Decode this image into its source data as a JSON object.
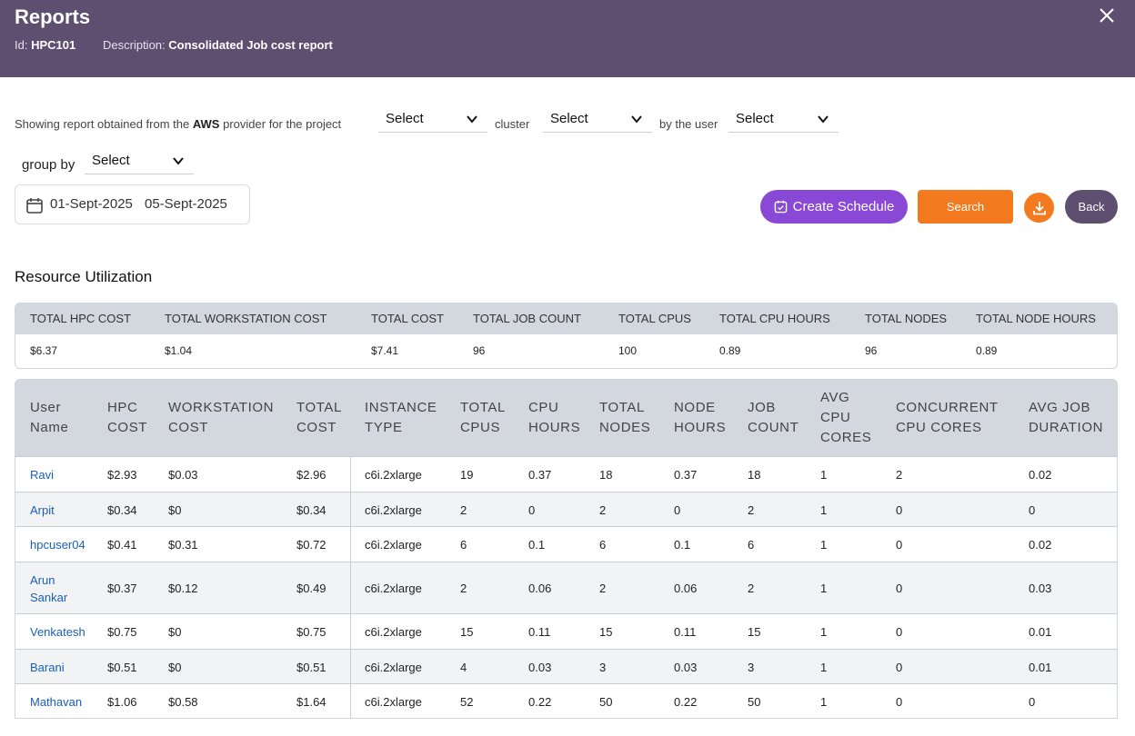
{
  "header": {
    "title": "Reports",
    "id_label": "Id:",
    "id_value": "HPC101",
    "desc_label": "Description:",
    "desc_value": "Consolidated Job cost report"
  },
  "filters": {
    "intro_prefix": "Showing report obtained from the",
    "provider": "AWS",
    "intro_suffix": "provider for the project",
    "project_select": "Select",
    "cluster_label": "cluster",
    "cluster_select": "Select",
    "user_label": "by the user",
    "user_select": "Select",
    "groupby_label": "group by",
    "groupby_select": "Select",
    "date_start": "01-Sept-2025",
    "date_end": "05-Sept-2025"
  },
  "actions": {
    "schedule_label": "Create Schedule",
    "search_label": "Search",
    "back_label": "Back"
  },
  "section_title": "Resource Utilization",
  "summary": {
    "headers": [
      "TOTAL HPC COST",
      "TOTAL WORKSTATION COST",
      "TOTAL COST",
      "TOTAL JOB COUNT",
      "TOTAL CPUS",
      "TOTAL CPU HOURS",
      "TOTAL NODES",
      "TOTAL NODE HOURS"
    ],
    "values": [
      "$6.37",
      "$1.04",
      "$7.41",
      "96",
      "100",
      "0.89",
      "96",
      "0.89"
    ]
  },
  "table": {
    "headers": [
      [
        "User",
        "Name"
      ],
      [
        "HPC",
        "COST"
      ],
      [
        "WORKSTATION",
        "COST"
      ],
      [
        "TOTAL",
        "COST"
      ],
      [
        "INSTANCE",
        "TYPE"
      ],
      [
        "TOTAL",
        "CPUS"
      ],
      [
        "CPU",
        "HOURS"
      ],
      [
        "TOTAL",
        "NODES"
      ],
      [
        "NODE",
        "HOURS"
      ],
      [
        "JOB",
        "COUNT"
      ],
      [
        "AVG",
        "CPU",
        "CORES"
      ],
      [
        "CONCURRENT",
        "CPU CORES"
      ],
      [
        "AVG JOB",
        "DURATION"
      ]
    ],
    "rows": [
      [
        [
          "Ravi"
        ],
        "$2.93",
        "$0.03",
        "$2.96",
        "c6i.2xlarge",
        "19",
        "0.37",
        "18",
        "0.37",
        "18",
        "1",
        "2",
        "0.02"
      ],
      [
        [
          "Arpit"
        ],
        "$0.34",
        "$0",
        "$0.34",
        "c6i.2xlarge",
        "2",
        "0",
        "2",
        "0",
        "2",
        "1",
        "0",
        "0"
      ],
      [
        [
          "hpcuser04"
        ],
        "$0.41",
        "$0.31",
        "$0.72",
        "c6i.2xlarge",
        "6",
        "0.1",
        "6",
        "0.1",
        "6",
        "1",
        "0",
        "0.02"
      ],
      [
        [
          "Arun",
          "Sankar"
        ],
        "$0.37",
        "$0.12",
        "$0.49",
        "c6i.2xlarge",
        "2",
        "0.06",
        "2",
        "0.06",
        "2",
        "1",
        "0",
        "0.03"
      ],
      [
        [
          "Venkatesh"
        ],
        "$0.75",
        "$0",
        "$0.75",
        "c6i.2xlarge",
        "15",
        "0.11",
        "15",
        "0.11",
        "15",
        "1",
        "0",
        "0.01"
      ],
      [
        [
          "Barani"
        ],
        "$0.51",
        "$0",
        "$0.51",
        "c6i.2xlarge",
        "4",
        "0.03",
        "3",
        "0.03",
        "3",
        "1",
        "0",
        "0.01"
      ],
      [
        [
          "Mathavan"
        ],
        "$1.06",
        "$0.58",
        "$1.64",
        "c6i.2xlarge",
        "52",
        "0.22",
        "50",
        "0.22",
        "50",
        "1",
        "0",
        "0"
      ]
    ]
  }
}
